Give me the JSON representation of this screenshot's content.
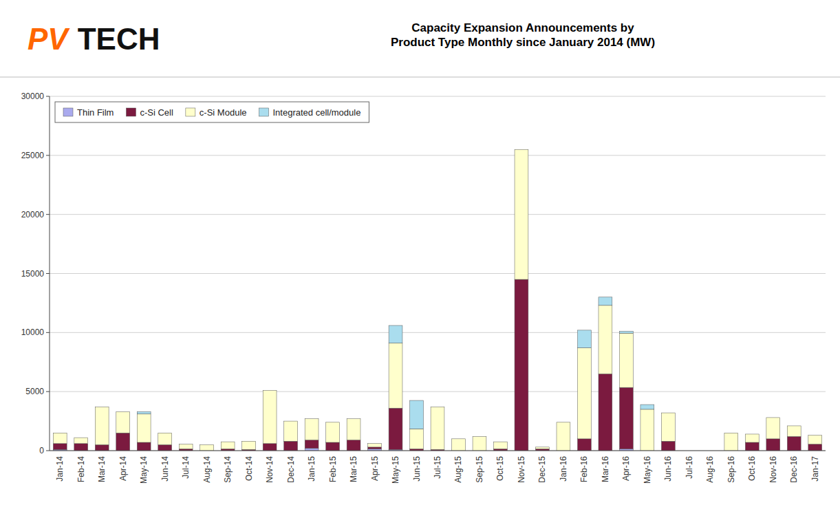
{
  "chart_data": {
    "type": "bar",
    "stacked": true,
    "title": "Capacity Expansion Announcements by\nProduct Type Monthly since January 2014 (MW)",
    "annotations": [
      "PV",
      "TECH"
    ],
    "categories": [
      "Jan-14",
      "Feb-14",
      "Mar-14",
      "Apr-14",
      "May-14",
      "Jun-14",
      "Jul-14",
      "Aug-14",
      "Sep-14",
      "Oct-14",
      "Nov-14",
      "Dec-14",
      "Jan-15",
      "Feb-15",
      "Mar-15",
      "Apr-15",
      "May-15",
      "Jun-15",
      "Jul-15",
      "Aug-15",
      "Sep-15",
      "Oct-15",
      "Nov-15",
      "Dec-15",
      "Jan-16",
      "Feb-16",
      "Mar-16",
      "Apr-16",
      "May-16",
      "Jun-16",
      "Jul-16",
      "Aug-16",
      "Sep-16",
      "Oct-16",
      "Nov-16",
      "Dec-16",
      "Jan-17"
    ],
    "series": [
      {
        "name": "Thin Film",
        "color": "#aaaaee",
        "values": [
          100,
          0,
          0,
          0,
          0,
          0,
          0,
          0,
          0,
          0,
          0,
          0,
          200,
          0,
          0,
          150,
          100,
          0,
          0,
          0,
          0,
          0,
          0,
          0,
          0,
          0,
          0,
          150,
          0,
          0,
          0,
          0,
          0,
          0,
          0,
          0,
          0
        ]
      },
      {
        "name": "c-Si Cell",
        "color": "#7b1a3f",
        "values": [
          500,
          600,
          500,
          1500,
          700,
          500,
          150,
          0,
          150,
          100,
          600,
          800,
          700,
          700,
          900,
          150,
          3500,
          150,
          100,
          0,
          0,
          150,
          14500,
          150,
          0,
          1000,
          6500,
          5200,
          0,
          800,
          0,
          0,
          0,
          700,
          1000,
          1200,
          550
        ]
      },
      {
        "name": "c-Si Module",
        "color": "#ffffcc",
        "values": [
          900,
          500,
          3200,
          1800,
          2400,
          1000,
          400,
          500,
          600,
          700,
          4500,
          1700,
          1800,
          1700,
          1800,
          300,
          5500,
          1700,
          3600,
          1000,
          1200,
          600,
          11000,
          150,
          2400,
          7700,
          5800,
          4600,
          3500,
          2400,
          0,
          0,
          1500,
          700,
          1800,
          900,
          750
        ]
      },
      {
        "name": "Integrated cell/module",
        "color": "#aaddee",
        "values": [
          0,
          0,
          0,
          0,
          200,
          0,
          0,
          0,
          0,
          0,
          0,
          0,
          0,
          0,
          0,
          0,
          1500,
          2400,
          0,
          0,
          0,
          0,
          0,
          0,
          0,
          1500,
          700,
          150,
          400,
          0,
          0,
          0,
          0,
          0,
          0,
          0,
          0
        ]
      }
    ],
    "ylim": [
      0,
      30000
    ],
    "yticks": [
      0,
      5000,
      10000,
      15000,
      20000,
      25000,
      30000
    ],
    "grid": true,
    "legend": "top-left"
  }
}
